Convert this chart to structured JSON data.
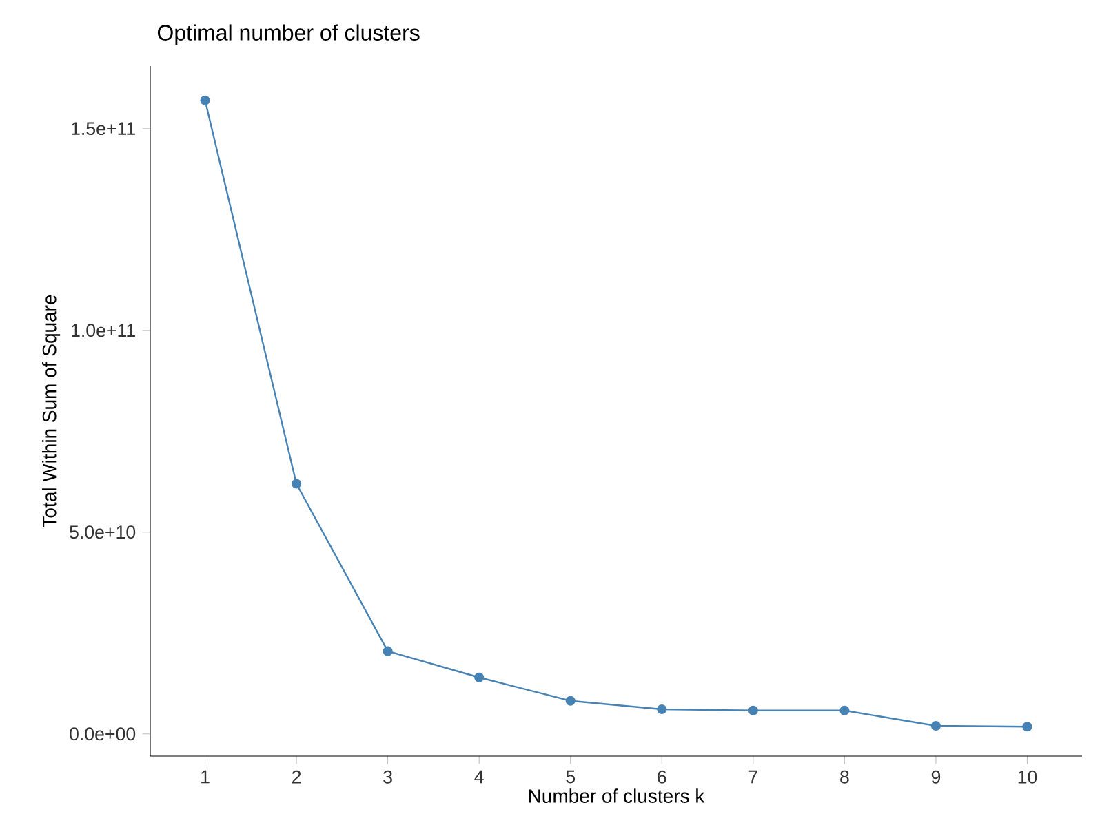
{
  "chart_data": {
    "type": "line",
    "title": "Optimal number of clusters",
    "xlabel": "Number of clusters k",
    "ylabel": "Total Within Sum of Square",
    "categories": [
      "1",
      "2",
      "3",
      "4",
      "5",
      "6",
      "7",
      "8",
      "9",
      "10"
    ],
    "values": [
      157000000000,
      62000000000,
      20500000000,
      14000000000,
      8200000000,
      6100000000,
      5800000000,
      5800000000,
      2000000000,
      1800000000
    ],
    "color": "#4682b4",
    "marker": "circle",
    "line_style": "solid",
    "grid": false,
    "ylim": [
      -5500000000,
      165500000000
    ],
    "yticks": [
      {
        "value": 0,
        "label": "0.0e+00"
      },
      {
        "value": 50000000000,
        "label": "5.0e+10"
      },
      {
        "value": 100000000000,
        "label": "1.0e+11"
      },
      {
        "value": 150000000000,
        "label": "1.5e+11"
      }
    ]
  }
}
